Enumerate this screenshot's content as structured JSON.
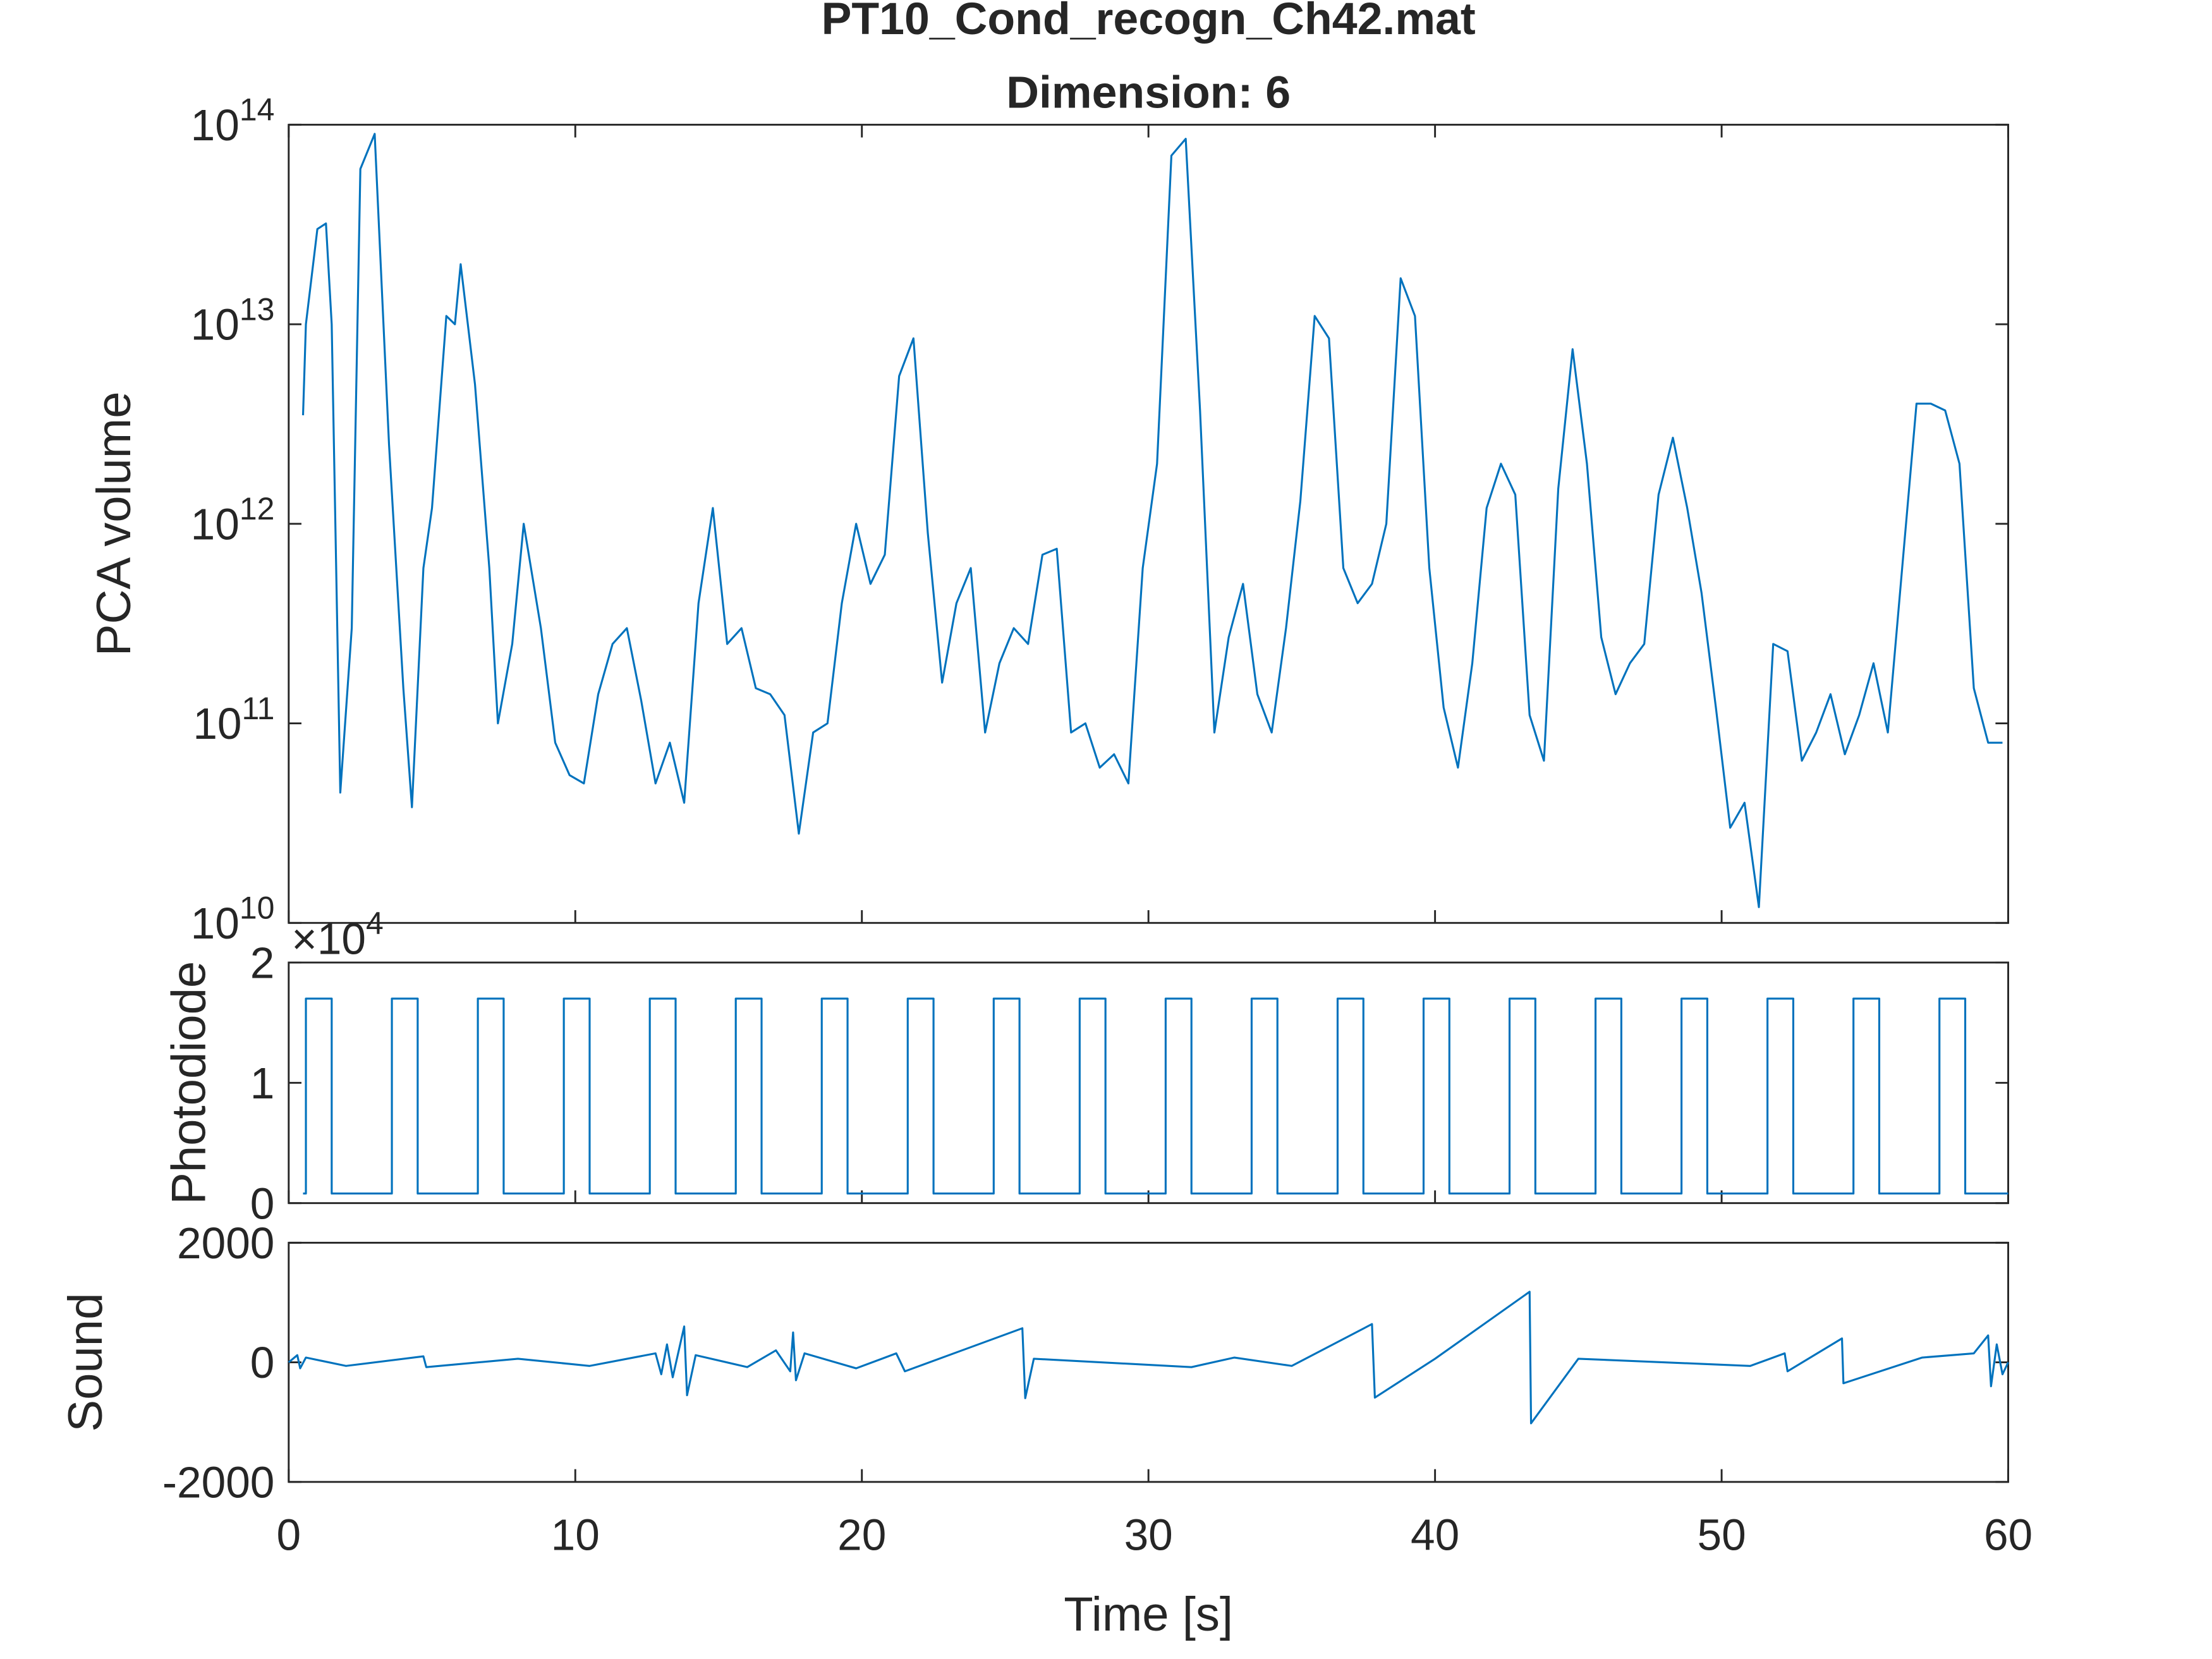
{
  "chart_data": [
    {
      "type": "line",
      "title": "PT10_Cond_recogn_Ch42.mat",
      "subtitle": "Dimension: 6",
      "y_label": "PCA volume",
      "yscale": "log",
      "ylim": [
        10000000000,
        100000000000000
      ],
      "yticks": [
        {
          "value": 10000000000,
          "label": "10^10"
        },
        {
          "value": 100000000000,
          "label": "10^11"
        },
        {
          "value": 1000000000000,
          "label": "10^12"
        },
        {
          "value": 10000000000000,
          "label": "10^13"
        },
        {
          "value": 100000000000000,
          "label": "10^14"
        }
      ],
      "xlim": [
        0,
        60
      ],
      "xticks": [
        0,
        10,
        20,
        30,
        40,
        50,
        60
      ],
      "show_xtick_labels": false,
      "series": [
        {
          "color": "#0072bd",
          "x": [
            0.5,
            0.6,
            1,
            1.3,
            1.5,
            1.8,
            2.2,
            2.5,
            3,
            3.5,
            4,
            4.3,
            4.7,
            5,
            5.5,
            5.8,
            6,
            6.5,
            7,
            7.3,
            7.8,
            8.2,
            8.8,
            9.3,
            9.8,
            10.3,
            10.8,
            11.3,
            11.8,
            12.3,
            12.8,
            13.3,
            13.8,
            14.3,
            14.8,
            15.3,
            15.8,
            16.3,
            16.8,
            17.3,
            17.8,
            18.3,
            18.8,
            19.3,
            19.8,
            20.3,
            20.8,
            21.3,
            21.8,
            22.3,
            22.8,
            23.3,
            23.8,
            24.3,
            24.8,
            25.3,
            25.8,
            26.3,
            26.8,
            27.3,
            27.8,
            28.3,
            28.8,
            29.3,
            29.8,
            30.3,
            30.8,
            31.3,
            31.8,
            32.3,
            32.8,
            33.3,
            33.8,
            34.3,
            34.8,
            35.3,
            35.8,
            36.3,
            36.8,
            37.3,
            37.8,
            38.3,
            38.8,
            39.3,
            39.8,
            40.3,
            40.8,
            41.3,
            41.8,
            42.3,
            42.8,
            43.3,
            43.8,
            44.3,
            44.8,
            45.3,
            45.8,
            46.3,
            46.8,
            47.3,
            47.8,
            48.3,
            48.8,
            49.3,
            49.8,
            50.3,
            50.8,
            51.3,
            51.8,
            52.3,
            52.8,
            53.3,
            53.8,
            54.3,
            54.8,
            55.3,
            55.8,
            56.3,
            56.8,
            57.3,
            57.8,
            58.3,
            58.8,
            59.3,
            59.8
          ],
          "values": [
            3500000000000,
            10000000000000,
            30000000000000,
            32000000000000,
            10000000000000,
            45000000000,
            300000000000,
            60000000000000,
            90000000000000,
            2500000000000,
            150000000000,
            38000000000,
            600000000000,
            1200000000000,
            11000000000000,
            10000000000000,
            20000000000000,
            5000000000000,
            600000000000,
            100000000000,
            250000000000,
            1000000000000,
            300000000000,
            80000000000,
            55000000000,
            50000000000,
            140000000000,
            250000000000,
            300000000000,
            130000000000,
            50000000000,
            80000000000,
            40000000000,
            400000000000,
            1200000000000,
            250000000000,
            300000000000,
            150000000000,
            140000000000,
            110000000000,
            28000000000,
            90000000000,
            100000000000,
            400000000000,
            1000000000000,
            500000000000,
            700000000000,
            5500000000000,
            8500000000000,
            900000000000,
            160000000000,
            400000000000,
            600000000000,
            90000000000,
            200000000000,
            300000000000,
            250000000000,
            700000000000,
            750000000000,
            90000000000,
            100000000000,
            60000000000,
            70000000000,
            50000000000,
            600000000000,
            2000000000000,
            70000000000000,
            85000000000000,
            3700000000000,
            90000000000,
            270000000000,
            500000000000,
            140000000000,
            90000000000,
            300000000000,
            1300000000000,
            11000000000000,
            8500000000000,
            600000000000,
            400000000000,
            500000000000,
            1000000000000,
            17000000000000,
            11000000000000,
            600000000000,
            120000000000,
            60000000000,
            200000000000,
            1200000000000,
            2000000000000,
            1400000000000,
            110000000000,
            65000000000,
            1500000000000,
            7500000000000,
            2000000000000,
            270000000000,
            140000000000,
            200000000000,
            250000000000,
            1400000000000,
            2700000000000,
            1200000000000,
            450000000000,
            120000000000,
            30000000000,
            40000000000,
            12000000000,
            250000000000,
            230000000000,
            65000000000,
            90000000000,
            140000000000,
            70000000000,
            110000000000,
            200000000000,
            90000000000,
            600000000000,
            4000000000000,
            4000000000000,
            3700000000000,
            2000000000000,
            150000000000,
            80000000000,
            80000000000
          ]
        }
      ]
    },
    {
      "type": "line",
      "y_label": "Photodiode",
      "y_exponent_label": "×10^4",
      "ylim": [
        0,
        20000
      ],
      "yticks": [
        {
          "value": 0,
          "label": "0"
        },
        {
          "value": 10000,
          "label": "1"
        },
        {
          "value": 20000,
          "label": "2"
        }
      ],
      "xlim": [
        0,
        60
      ],
      "xticks": [
        0,
        10,
        20,
        30,
        40,
        50,
        60
      ],
      "show_xtick_labels": false,
      "series": [
        {
          "color": "#0072bd",
          "x": [
            0.5,
            0.6,
            0.6,
            1.5,
            1.5,
            3.6,
            3.6,
            4.5,
            4.5,
            6.6,
            6.6,
            7.5,
            7.5,
            9.6,
            9.6,
            10.5,
            10.5,
            12.6,
            12.6,
            13.5,
            13.5,
            15.6,
            15.6,
            16.5,
            16.5,
            18.6,
            18.6,
            19.5,
            19.5,
            21.6,
            21.6,
            22.5,
            22.5,
            24.6,
            24.6,
            25.5,
            25.5,
            27.6,
            27.6,
            28.5,
            28.5,
            30.6,
            30.6,
            31.5,
            31.5,
            33.6,
            33.6,
            34.5,
            34.5,
            36.6,
            36.6,
            37.5,
            37.5,
            39.6,
            39.6,
            40.5,
            40.5,
            42.6,
            42.6,
            43.5,
            43.5,
            45.6,
            45.6,
            46.5,
            46.5,
            48.6,
            48.6,
            49.5,
            49.5,
            51.6,
            51.6,
            52.5,
            52.5,
            54.6,
            54.6,
            55.5,
            55.5,
            57.6,
            57.6,
            58.5,
            58.5,
            60
          ],
          "values": [
            800,
            800,
            17000,
            17000,
            800,
            800,
            17000,
            17000,
            800,
            800,
            17000,
            17000,
            800,
            800,
            17000,
            17000,
            800,
            800,
            17000,
            17000,
            800,
            800,
            17000,
            17000,
            800,
            800,
            17000,
            17000,
            800,
            800,
            17000,
            17000,
            800,
            800,
            17000,
            17000,
            800,
            800,
            17000,
            17000,
            800,
            800,
            17000,
            17000,
            800,
            800,
            17000,
            17000,
            800,
            800,
            17000,
            17000,
            800,
            800,
            17000,
            17000,
            800,
            800,
            17000,
            17000,
            800,
            800,
            17000,
            17000,
            800,
            800,
            17000,
            17000,
            800,
            800,
            17000,
            17000,
            800,
            800,
            17000,
            17000,
            800,
            800,
            17000,
            17000,
            800,
            800
          ]
        }
      ]
    },
    {
      "type": "line",
      "y_label": "Sound",
      "x_label": "Time [s]",
      "ylim": [
        -2000,
        2000
      ],
      "yticks": [
        -2000,
        0,
        2000
      ],
      "xlim": [
        0,
        60
      ],
      "xticks": [
        0,
        10,
        20,
        30,
        40,
        50,
        60
      ],
      "show_xtick_labels": true,
      "series": [
        {
          "color": "#0072bd",
          "x": [
            0,
            0.3,
            0.4,
            0.6,
            2,
            4.7,
            4.8,
            8,
            10.5,
            12.8,
            13,
            13.2,
            13.4,
            13.8,
            13.9,
            14.2,
            16,
            17,
            17.5,
            17.6,
            17.7,
            18,
            19.8,
            21.2,
            21.5,
            25.6,
            25.7,
            26,
            31.5,
            33,
            35,
            37.8,
            37.9,
            40,
            43.3,
            43.35,
            45,
            51,
            52.2,
            52.3,
            54.2,
            54.25,
            57,
            58.8,
            59.3,
            59.4,
            59.6,
            59.8,
            60
          ],
          "values": [
            0,
            120,
            -100,
            80,
            -60,
            100,
            -80,
            60,
            -60,
            150,
            -200,
            300,
            -250,
            600,
            -550,
            120,
            -80,
            200,
            -150,
            500,
            -300,
            150,
            -100,
            150,
            -150,
            570,
            -600,
            60,
            -80,
            80,
            -60,
            640,
            -590,
            60,
            1180,
            -1020,
            60,
            -60,
            150,
            -150,
            400,
            -350,
            80,
            150,
            450,
            -400,
            300,
            -200,
            0
          ]
        }
      ]
    }
  ]
}
